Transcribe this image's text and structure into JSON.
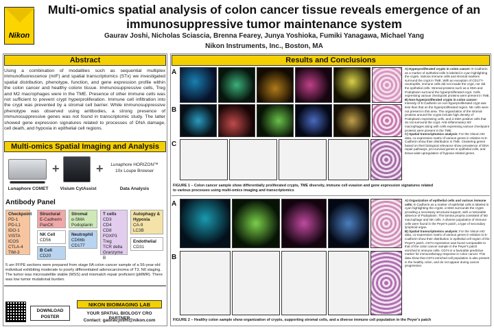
{
  "header": {
    "logo_text": "Nikon",
    "title_line1": "Multi-omics spatial analysis of colon cancer tissue reveals emergence of an",
    "title_line2": "immunosuppressive tumor maintenance system",
    "authors": "Gaurav Joshi, Nicholas Sciascia, Brenna Fearey, Junya Yoshioka, Fumiki Yanagawa, Michael Yang",
    "affiliation": "Nikon Instruments, Inc., Boston, MA"
  },
  "sections": {
    "abstract_title": "Abstract",
    "imaging_title": "Multi-omics Spatial Imaging and Analysis",
    "results_title": "Results and Conclusions"
  },
  "abstract_text": "Using a combination of modalities such as sequential multiplex immunofluorescence (mIF) and spatial transcriptomics (STx) we investigated spatial distribution, phenotype, function, and gene expression profile within the colon cancer and healthy colonx tissue. Immunosuppressive cells, Treg and M2 macrophages were in the TME. Presence of other immune cells was not sufficient to prevent crypt hyperproliferation. Immune cell infiltration into the crypt was prevented by a stromal cell barrier. While immunosuppressive phenotype was observed using antibodies, a strong presence of immunosuppressive genes was not found in transcriptomic study. The latter showed gene expression signatures related to processes of DNA damage, cell death, and hypoxia in epithelial cell regions.",
  "workflow": {
    "device1": "Lunaphore COMET",
    "device2": "Visium CytAssist",
    "software_line1": "Lunaphore HORIZON™",
    "software_line2": "10x Loupe Browser",
    "software_line3": "Data Analysis"
  },
  "antibody_panel": {
    "title": "Antibody Panel",
    "groups": [
      {
        "header": "Checkpoint",
        "items": [
          "PD-1",
          "PD-L1",
          "IDO-1",
          "VISTA",
          "ICOS",
          "CTLA-4",
          "TIM-3"
        ],
        "color": "#f7c6a0"
      },
      {
        "header": "Structural",
        "items": [
          "E-Cadherin",
          "PanCK"
        ],
        "color": "#f1a8a8"
      },
      {
        "header": "NK Cell",
        "items": [
          "CD56"
        ],
        "color": "#ffffff"
      },
      {
        "header": "B Cell",
        "items": [
          "CD20"
        ],
        "color": "#b8d4f0"
      },
      {
        "header": "Stromal",
        "items": [
          "α-SMA",
          "Podoplanin"
        ],
        "color": "#cfe8b8"
      },
      {
        "header": "Neutrophil",
        "items": [
          "CD66b",
          "CD177"
        ],
        "color": "#b8d4f0"
      },
      {
        "header": "T cells",
        "items": [
          "CD3",
          "CD4",
          "CD8",
          "FOXP3",
          "Treg",
          "TCR delta",
          "Granzyme B"
        ],
        "color": "#e3cdef"
      },
      {
        "header": "Autophagy & Hypoxia",
        "items": [
          "CA-9",
          "LC3B"
        ],
        "color": "#f3e3a8"
      },
      {
        "header": "Endothelial",
        "items": [
          "CD31"
        ],
        "color": "#ffffff"
      }
    ]
  },
  "ffpe_text": "5 um FFPE sections were prepared from stage IIA colon cancer sample of a 56-year-old individual exhibiting moderate to poorly differentiated adenocarcinoma of T3, N0 staging. The tumor was microsatellite stable (MSS) and mismatch repair proficient (pMMR). There was low tumor mutational burden.",
  "footer": {
    "download_line1": "DOWNLOAD",
    "download_line2": "POSTER",
    "lab_title": "NIKON BIOIMAGING LAB",
    "lab_tagline": "YOUR SPATIAL BIOLOGY CRO PARTNER",
    "lab_contact": "Contact: gaurav.joshi@nikon.com"
  },
  "figure1": {
    "caption": "FIGURE 1 – Colon cancer sample show differentially proliferated crypts, TME diversity, immune cell evasion and gene expression signatures related to various processes using multi-omics imaging and transcriptomics",
    "letters": [
      "A",
      "B",
      "C"
    ],
    "notes": [
      {
        "head": "A) Hyperproliferated crypts in colon cancer:",
        "body": "E-Cadherin as a marker of epithelial cells is labeled in cyan highlighting the crypts. Various immune cells and stromal markers surround the crypt in TME. With an exception of CD177+ neutrophils, immune cells did not invade the crypt, nor did the epithelial cells. Stromal proteins such as α-SMA and Podoplanin surround the hyperproliferated crypt. Cells expressing various checkpoint proteins were present in TME."
      },
      {
        "head": "B) Non-hyperproliferated crypts in colon cancer:",
        "body": "Intensity of E-Cadherin on non-hyperproliferated crypt was less than that on the hyperproliferated region. NK cells were not present in this area. The organization of the stromal proteins around the crypts include high density of Podoplanin expressing cells, and α-SMA positive cells that do not surround the crypt. Anti-inflammatory M2 macrophages along with cells expressing various checkpoint proteins were present in the TME."
      },
      {
        "head": "C) Spatial transcriptomics analysis:",
        "body": "For the Visium HD data, co-expression matrix of various genes in relation to E-Cadherin show their distribution in TME. Clustering genes based on their biological relevance show prevalence of DNA repair pathways, pro-survival genes in epithelial cells, and tissue-wide upregulation of hypoxia related genes."
      }
    ]
  },
  "figure2": {
    "caption": "FIGURE 2 – Healthy colon sample show organization of crypts, supporting stromal cells, and a diverse immune cell population in the Peyer's patch",
    "letters": [
      "A",
      "B"
    ],
    "notes": [
      {
        "head": "A) Organization of epithelial cells and various immune cells:",
        "body": "E-Cadherin as a marker of epithelial cells is labeled in cyan highlighting the crypts. α-SMA surrounds the crypts providing a necessary structural support, with a noticeable absence of Podoplanin. The lamina propria consisted of M2 macrophage and NK cells. A diverse population of immune cells were found in the Peyer's patch, a type of secondary lymphoid organ."
      },
      {
        "head": "B) Spatial transcriptomics analysis:",
        "body": "For the Visium HD data, co-expression matrix of various genes in relation to E-Cadherin show their distribution in epithelial cell region of the Peyer's patch. CD74 expression was found comparable to that of the colon cancer sample in the Peyer's patch enriched in immune cells. CD74 is a favorable predictive marker for immunotherapy response in colon cancer. This data show that CD74 enriched cell population is also present in the healthy colon, and do not appear during cancer progression."
      }
    ]
  },
  "colors": {
    "accent_yellow": "#f5d000",
    "micro_bg": "#05071a"
  }
}
